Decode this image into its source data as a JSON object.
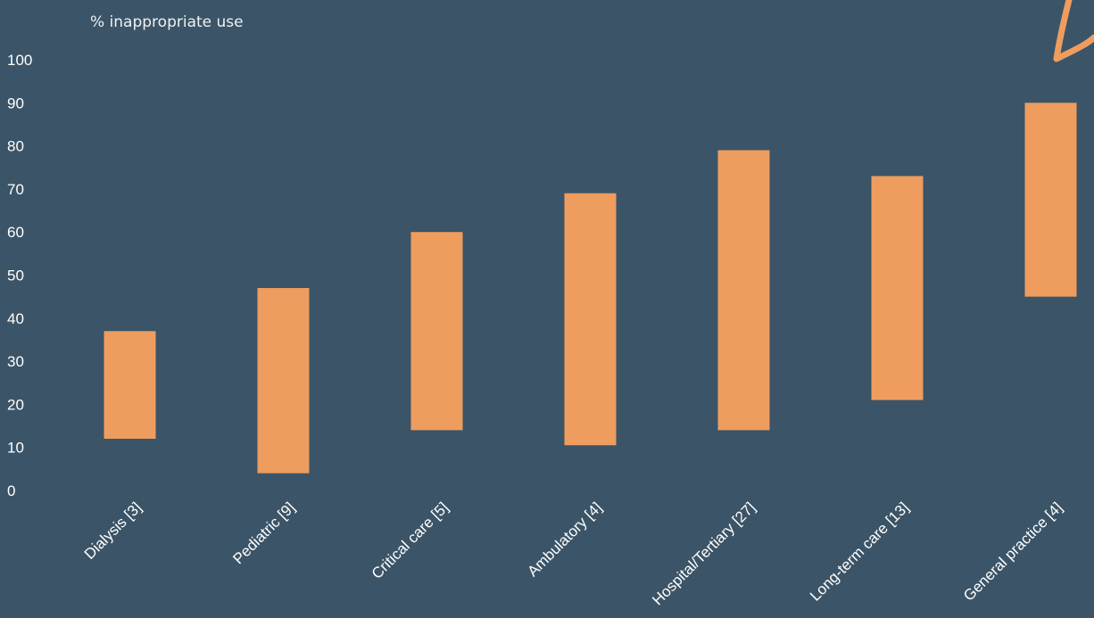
{
  "chart_data": {
    "type": "bar",
    "subtype": "floating-range",
    "ylabel": "% inappropriate use",
    "xlabel": "",
    "ylim": [
      0,
      100
    ],
    "yticks": [
      0,
      10,
      20,
      30,
      40,
      50,
      60,
      70,
      80,
      90,
      100
    ],
    "grid": false,
    "categories": [
      "Dialysis [3]",
      "Pediatric [9]",
      "Critical care [5]",
      "Ambulatory [4]",
      "Hospital/Tertiary [27]",
      "Long-term care [13]",
      "General practice [4]"
    ],
    "low": [
      12,
      4,
      14,
      10.5,
      14,
      21,
      45
    ],
    "high": [
      37,
      47,
      60,
      69,
      79,
      73,
      90
    ],
    "colors": {
      "background": "#3b5467",
      "bar": "#ee9d5f",
      "text": "#ffffff",
      "annotation_arrow": "#ee9d5f"
    }
  }
}
